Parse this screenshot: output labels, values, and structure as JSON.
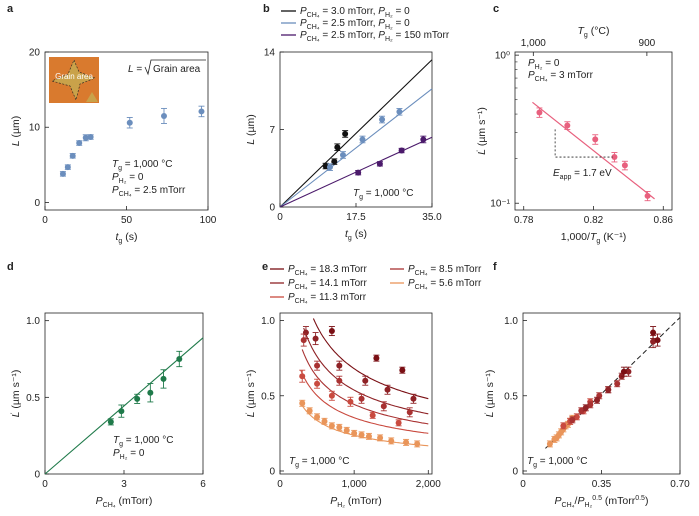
{
  "colors": {
    "blue": "#6b8ebd",
    "black": "#111111",
    "purple": "#4b1a6b",
    "pink": "#e8607e",
    "green": "#1f7a4a",
    "red_dark": "#7a0f14",
    "red_1": "#8f2226",
    "red_2": "#a93232",
    "red_3": "#c94a3f",
    "orange": "#e9955a",
    "grain_bg": "#d97a2e",
    "grain": "#c9a24a"
  },
  "chart_data": [
    {
      "id": "a",
      "panel_letter": "a",
      "type": "scatter",
      "xlabel": "t",
      "xlabel_sub": "g",
      "xlabel_unit": " (s)",
      "ylabel": "L",
      "ylabel_unit": " (µm)",
      "xlim": [
        0,
        100
      ],
      "ylim": [
        -1,
        20
      ],
      "xticks": [
        "0",
        "50",
        "100"
      ],
      "yticks": [
        "0",
        "10",
        "20"
      ],
      "xtick_values": [
        0,
        50,
        100
      ],
      "ytick_values": [
        0,
        10,
        20
      ],
      "inset": {
        "label": "Grain area",
        "icon": "grain-micrograph"
      },
      "equation": {
        "lhs": "L =",
        "radicand": "Grain area"
      },
      "annotations": [
        {
          "main": "T",
          "sub": "g",
          "rest": " = 1,000 °C"
        },
        {
          "main": "P",
          "sub": "H₂",
          "rest": " = 0"
        },
        {
          "main": "P",
          "sub": "CH₄",
          "rest": " = 2.5 mTorr"
        }
      ],
      "series": [
        {
          "color": "blue",
          "points": [
            [
              11,
              3.8
            ],
            [
              14,
              4.7
            ],
            [
              17,
              6.2
            ],
            [
              21,
              7.9
            ],
            [
              25,
              8.6
            ],
            [
              28,
              8.7
            ],
            [
              52,
              10.6
            ],
            [
              73,
              11.5
            ],
            [
              96,
              12.1
            ]
          ],
          "yerr": [
            0.3,
            0.3,
            0.3,
            0.3,
            0.4,
            0.3,
            0.7,
            1.0,
            0.7
          ]
        }
      ]
    },
    {
      "id": "b",
      "panel_letter": "b",
      "type": "scatter",
      "xlabel": "t",
      "xlabel_sub": "g",
      "xlabel_unit": " (s)",
      "ylabel": "L",
      "ylabel_unit": " (µm)",
      "xlim": [
        0,
        35
      ],
      "ylim": [
        0,
        14
      ],
      "xticks": [
        "0",
        "17.5",
        "35.0"
      ],
      "yticks": [
        "0",
        "7",
        "14"
      ],
      "xtick_values": [
        0,
        17.5,
        35
      ],
      "ytick_values": [
        0,
        7,
        14
      ],
      "legend": [
        {
          "color": "black",
          "main": "P",
          "sub": "CH₄",
          "rest": " = 3.0 mTorr, ",
          "main2": "P",
          "sub2": "H₂",
          "rest2": " = 0"
        },
        {
          "color": "blue",
          "main": "P",
          "sub": "CH₄",
          "rest": " = 2.5 mTorr, ",
          "main2": "P",
          "sub2": "H₂",
          "rest2": " = 0"
        },
        {
          "color": "purple",
          "main": "P",
          "sub": "CH₄",
          "rest": " = 2.5 mTorr, ",
          "main2": "P",
          "sub2": "H₂",
          "rest2": " = 150 mTorr"
        }
      ],
      "annotations": [
        {
          "main": "T",
          "sub": "g",
          "rest": " = 1,000 °C"
        }
      ],
      "series": [
        {
          "color": "black",
          "fit": [
            0,
            0.38
          ],
          "points": [
            [
              10.5,
              3.7
            ],
            [
              12.5,
              4.1
            ],
            [
              13.2,
              5.4
            ],
            [
              15,
              6.6
            ]
          ],
          "yerr": [
            0.25,
            0.25,
            0.3,
            0.3
          ]
        },
        {
          "color": "blue",
          "fit": [
            0,
            0.305
          ],
          "points": [
            [
              11.5,
              3.6
            ],
            [
              14.5,
              4.7
            ],
            [
              19,
              6.1
            ],
            [
              23.5,
              7.9
            ],
            [
              27.5,
              8.6
            ]
          ],
          "yerr": [
            0.3,
            0.3,
            0.3,
            0.3,
            0.3
          ]
        },
        {
          "color": "purple",
          "fit": [
            0,
            0.18
          ],
          "points": [
            [
              18,
              3.1
            ],
            [
              23,
              3.9
            ],
            [
              28,
              5.1
            ],
            [
              33,
              6.1
            ]
          ],
          "yerr": [
            0.2,
            0.2,
            0.2,
            0.3
          ]
        }
      ]
    },
    {
      "id": "c",
      "panel_letter": "c",
      "type": "scatter",
      "log_y": true,
      "xlabel": "1,000/",
      "xlabel_main2": "T",
      "xlabel_sub": "g",
      "xlabel_unit": " (K⁻¹)",
      "ylabel": "L̇",
      "ylabel_unit": " (µm s⁻¹)",
      "toplabel": "T",
      "toplabel_sub": "g",
      "toplabel_unit": " (°C)",
      "xlim": [
        0.775,
        0.865
      ],
      "ylim": [
        0.09,
        1.05
      ],
      "xticks": [
        "0.78",
        "0.82",
        "0.86"
      ],
      "xtick_values": [
        0.78,
        0.82,
        0.86
      ],
      "yticks": [
        "10⁰",
        "10⁻¹"
      ],
      "ytick_values": [
        1,
        0.1
      ],
      "top_ticks": [
        "1,000",
        "900"
      ],
      "top_tick_values": [
        0.7855,
        0.8506
      ],
      "activation": {
        "label": "E",
        "sub": "app",
        "rest": " = 1.7 eV"
      },
      "annotations": [
        {
          "main": "P",
          "sub": "H₂",
          "rest": " = 0"
        },
        {
          "main": "P",
          "sub": "CH₄",
          "rest": " = 3 mTorr"
        }
      ],
      "series": [
        {
          "color": "pink",
          "fit": {
            "x": [
              0.785,
              0.855
            ],
            "y": [
              0.48,
              0.107
            ]
          },
          "points": [
            [
              0.789,
              0.41
            ],
            [
              0.805,
              0.335
            ],
            [
              0.821,
              0.27
            ],
            [
              0.832,
              0.205
            ],
            [
              0.838,
              0.18
            ],
            [
              0.851,
              0.112
            ]
          ],
          "yerr": [
            0.03,
            0.02,
            0.02,
            0.015,
            0.012,
            0.008
          ]
        }
      ]
    },
    {
      "id": "d",
      "panel_letter": "d",
      "type": "scatter",
      "xlabel": "P",
      "xlabel_sub": "CH₄",
      "xlabel_unit": " (mTorr)",
      "ylabel": "L̇",
      "ylabel_unit": " (µm s⁻¹)",
      "xlim": [
        0,
        6
      ],
      "ylim": [
        0,
        1.05
      ],
      "xticks": [
        "0",
        "3",
        "6"
      ],
      "xtick_values": [
        0,
        3,
        6
      ],
      "yticks": [
        "0",
        "0.5",
        "1.0"
      ],
      "ytick_values": [
        0,
        0.5,
        1.0
      ],
      "annotations": [
        {
          "main": "T",
          "sub": "g",
          "rest": " = 1,000 °C"
        },
        {
          "main": "P",
          "sub": "H₂",
          "rest": " = 0"
        }
      ],
      "series": [
        {
          "color": "green",
          "fit": [
            0,
            0.148
          ],
          "points": [
            [
              2.5,
              0.34
            ],
            [
              2.9,
              0.41
            ],
            [
              3.5,
              0.49
            ],
            [
              4.0,
              0.53
            ],
            [
              4.5,
              0.62
            ],
            [
              5.1,
              0.75
            ]
          ],
          "yerr": [
            0.02,
            0.04,
            0.03,
            0.06,
            0.06,
            0.05
          ]
        }
      ]
    },
    {
      "id": "e",
      "panel_letter": "e",
      "type": "scatter",
      "xlabel": "P",
      "xlabel_sub": "H₂",
      "xlabel_unit": " (mTorr)",
      "ylabel": "L̇",
      "ylabel_unit": " (µm s⁻¹)",
      "xlim": [
        0,
        2050
      ],
      "ylim": [
        -0.02,
        1.05
      ],
      "xticks": [
        "0",
        "1,000",
        "2,000"
      ],
      "xtick_values": [
        0,
        1000,
        2000
      ],
      "yticks": [
        "0",
        "0.5",
        "1.0"
      ],
      "ytick_values": [
        0,
        0.5,
        1.0
      ],
      "legend": [
        {
          "color": "red_dark",
          "main": "P",
          "sub": "CH₄",
          "rest": " = 18.3 mTorr"
        },
        {
          "color": "red_1",
          "main": "P",
          "sub": "CH₄",
          "rest": " = 14.1 mTorr"
        },
        {
          "color": "red_3",
          "main": "P",
          "sub": "CH₄",
          "rest": " = 11.3 mTorr"
        },
        {
          "color": "red_2",
          "main": "P",
          "sub": "CH₄",
          "rest": " = 8.5 mTorr"
        },
        {
          "color": "orange",
          "main": "P",
          "sub": "CH₄",
          "rest": " = 5.6 mTorr"
        }
      ],
      "annotations": [
        {
          "main": "T",
          "sub": "g",
          "rest": " = 1,000 °C"
        }
      ],
      "series": [
        {
          "color": "red_dark",
          "fitk": 21.5,
          "fitx": [
            450,
            2000
          ],
          "points": [
            [
              700,
              0.93
            ],
            [
              1300,
              0.75
            ],
            [
              1650,
              0.67
            ]
          ],
          "yerr": [
            0.03,
            0.02,
            0.02
          ]
        },
        {
          "color": "red_1",
          "fitk": 17.0,
          "fitx": [
            320,
            2000
          ],
          "points": [
            [
              350,
              0.92
            ],
            [
              480,
              0.88
            ],
            [
              800,
              0.7
            ],
            [
              1150,
              0.6
            ],
            [
              1450,
              0.54
            ],
            [
              1800,
              0.48
            ]
          ],
          "yerr": [
            0.04,
            0.04,
            0.03,
            0.03,
            0.03,
            0.03
          ]
        },
        {
          "color": "red_2",
          "fitk": 14.0,
          "fitx": [
            300,
            2000
          ],
          "points": [
            [
              320,
              0.87
            ],
            [
              500,
              0.7
            ],
            [
              800,
              0.6
            ],
            [
              1100,
              0.48
            ],
            [
              1400,
              0.43
            ],
            [
              1750,
              0.39
            ]
          ],
          "yerr": [
            0.04,
            0.03,
            0.03,
            0.03,
            0.03,
            0.03
          ]
        },
        {
          "color": "red_3",
          "fitk": 11.2,
          "fitx": [
            280,
            2000
          ],
          "points": [
            [
              300,
              0.63
            ],
            [
              500,
              0.58
            ],
            [
              700,
              0.5
            ],
            [
              950,
              0.46
            ],
            [
              1250,
              0.37
            ],
            [
              1600,
              0.32
            ]
          ],
          "yerr": [
            0.04,
            0.03,
            0.03,
            0.03,
            0.02,
            0.02
          ]
        },
        {
          "color": "orange",
          "fitk": 7.5,
          "fitx": [
            270,
            2000
          ],
          "points": [
            [
              300,
              0.45
            ],
            [
              400,
              0.4
            ],
            [
              500,
              0.36
            ],
            [
              600,
              0.33
            ],
            [
              700,
              0.3
            ],
            [
              800,
              0.29
            ],
            [
              900,
              0.27
            ],
            [
              1000,
              0.25
            ],
            [
              1100,
              0.24
            ],
            [
              1200,
              0.23
            ],
            [
              1350,
              0.22
            ],
            [
              1500,
              0.2
            ],
            [
              1700,
              0.19
            ],
            [
              1850,
              0.18
            ]
          ],
          "yerr": [
            0.02,
            0.02,
            0.02,
            0.02,
            0.02,
            0.02,
            0.02,
            0.02,
            0.02,
            0.02,
            0.02,
            0.02,
            0.02,
            0.02
          ]
        }
      ]
    },
    {
      "id": "f",
      "panel_letter": "f",
      "type": "scatter",
      "xlabel": "P",
      "xlabel_sub": "CH₄",
      "xlabel_mid": "/",
      "xlabel_main2": "P",
      "xlabel_sub2": "H₂",
      "xlabel_sup2": "0.5",
      "xlabel_unit": " (mTorr",
      "xlabel_unit_sup": "0.5",
      "xlabel_unit_end": ")",
      "ylabel": "L̇",
      "ylabel_unit": " (µm s⁻¹)",
      "xlim": [
        0,
        0.7
      ],
      "ylim": [
        -0.02,
        1.05
      ],
      "xticks": [
        "0",
        "0.35",
        "0.70"
      ],
      "xtick_values": [
        0,
        0.35,
        0.7
      ],
      "yticks": [
        "0",
        "0.5",
        "1.0"
      ],
      "ytick_values": [
        0,
        0.5,
        1.0
      ],
      "annotations": [
        {
          "main": "T",
          "sub": "g",
          "rest": " = 1,000 °C"
        }
      ],
      "fit": {
        "x": [
          0.1,
          0.7
        ],
        "y": [
          0.15,
          1.02
        ]
      },
      "series": [
        {
          "color": "orange",
          "points": [
            [
              0.12,
              0.18
            ],
            [
              0.14,
              0.21
            ],
            [
              0.15,
              0.22
            ],
            [
              0.16,
              0.24
            ],
            [
              0.17,
              0.26
            ],
            [
              0.18,
              0.28
            ],
            [
              0.19,
              0.3
            ],
            [
              0.2,
              0.31
            ],
            [
              0.21,
              0.33
            ],
            [
              0.22,
              0.35
            ]
          ],
          "yerr": [
            0.02,
            0.02,
            0.02,
            0.02,
            0.02,
            0.02,
            0.02,
            0.02,
            0.02,
            0.02
          ]
        },
        {
          "color": "red_3",
          "points": [
            [
              0.18,
              0.3
            ],
            [
              0.21,
              0.33
            ],
            [
              0.24,
              0.36
            ],
            [
              0.27,
              0.4
            ],
            [
              0.3,
              0.46
            ]
          ],
          "yerr": [
            0.02,
            0.02,
            0.02,
            0.02,
            0.02
          ]
        },
        {
          "color": "red_2",
          "points": [
            [
              0.22,
              0.34
            ],
            [
              0.26,
              0.4
            ],
            [
              0.3,
              0.44
            ],
            [
              0.34,
              0.5
            ],
            [
              0.38,
              0.54
            ],
            [
              0.42,
              0.58
            ]
          ],
          "yerr": [
            0.02,
            0.02,
            0.02,
            0.02,
            0.02,
            0.02
          ]
        },
        {
          "color": "red_1",
          "points": [
            [
              0.28,
              0.42
            ],
            [
              0.33,
              0.47
            ],
            [
              0.38,
              0.54
            ],
            [
              0.44,
              0.63
            ],
            [
              0.47,
              0.66
            ],
            [
              0.58,
              0.86
            ]
          ],
          "yerr": [
            0.02,
            0.02,
            0.02,
            0.02,
            0.03,
            0.04
          ]
        },
        {
          "color": "red_dark",
          "points": [
            [
              0.45,
              0.66
            ],
            [
              0.58,
              0.92
            ],
            [
              0.6,
              0.87
            ]
          ],
          "yerr": [
            0.03,
            0.04,
            0.04
          ]
        }
      ]
    }
  ]
}
